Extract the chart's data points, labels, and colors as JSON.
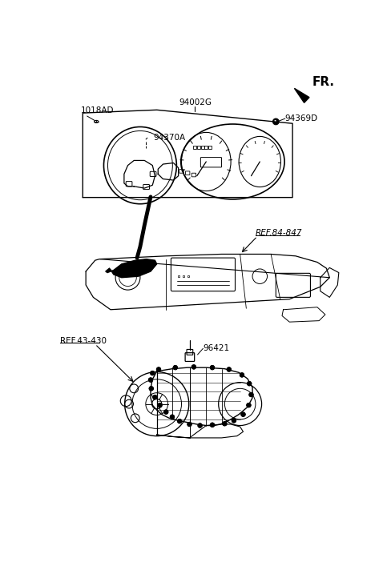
{
  "background_color": "#ffffff",
  "line_color": "#000000",
  "fr_text": "FR.",
  "label_94002G": "94002G",
  "label_1018AD": "1018AD",
  "label_94369D": "94369D",
  "label_94370A": "94370A",
  "label_ref84847": "REF.84-847",
  "label_ref43430": "REF.43-430",
  "label_96421": "96421"
}
